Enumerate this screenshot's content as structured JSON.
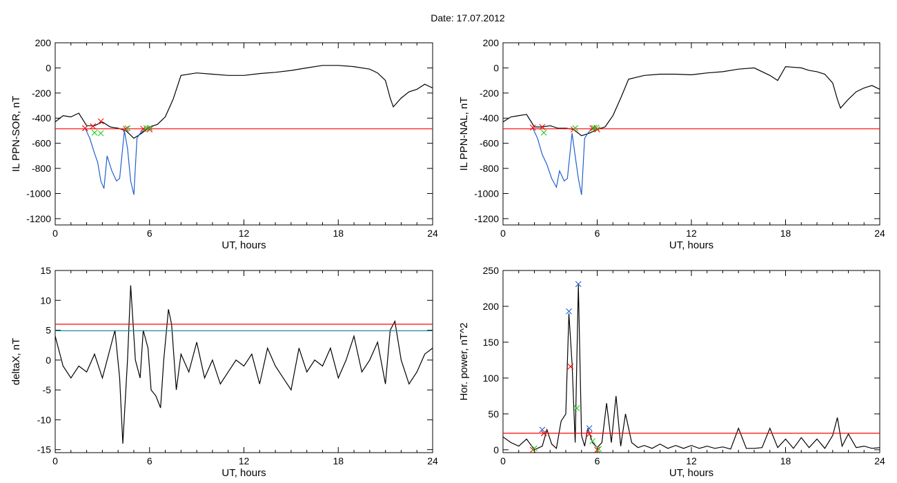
{
  "figure": {
    "title": "Date:  17.07.2012"
  },
  "colors": {
    "black": "#000000",
    "red": "#ff0000",
    "blue": "#1f5fd0",
    "teal": "#1c8a99",
    "green": "#22cc22"
  },
  "chart_data": [
    {
      "type": "line",
      "xlabel": "UT, hours",
      "ylabel": "IL PPN-SOR, nT",
      "xlim": [
        0,
        24
      ],
      "ylim": [
        -1250,
        200
      ],
      "xticks": [
        0,
        6,
        12,
        18,
        24
      ],
      "yticks": [
        200,
        0,
        -200,
        -400,
        -600,
        -800,
        -1000,
        -1200
      ],
      "grid": false,
      "series": [
        {
          "color": "#000000",
          "x": [
            0,
            0.5,
            1,
            1.5,
            2,
            2.5,
            3,
            3.5,
            4,
            4.5,
            5,
            5.5,
            6,
            6.5,
            7,
            7.5,
            8,
            9,
            10,
            11,
            12,
            13,
            14,
            15,
            16,
            17,
            18,
            19,
            20,
            20.5,
            21,
            21.3,
            21.5,
            22,
            22.5,
            23,
            23.5,
            24
          ],
          "y": [
            -430,
            -380,
            -390,
            -360,
            -460,
            -460,
            -430,
            -470,
            -480,
            -500,
            -560,
            -520,
            -470,
            -450,
            -390,
            -250,
            -60,
            -40,
            -50,
            -60,
            -60,
            -45,
            -35,
            -20,
            0,
            20,
            20,
            10,
            -10,
            -40,
            -100,
            -240,
            -310,
            -240,
            -190,
            -170,
            -130,
            -160
          ]
        },
        {
          "color": "#1f5fd0",
          "x": [
            1.9,
            2.2,
            2.5,
            2.7,
            2.9,
            3.1,
            3.3,
            3.6,
            3.9,
            4.1,
            4.4,
            4.6,
            4.8,
            5.0,
            5.2,
            5.4,
            5.6,
            5.9
          ],
          "y": [
            -480,
            -560,
            -680,
            -750,
            -900,
            -960,
            -700,
            -820,
            -900,
            -880,
            -500,
            -640,
            -900,
            -1010,
            -560,
            -520,
            -500,
            -480
          ]
        },
        {
          "color": "#ff0000",
          "x": [
            0,
            24
          ],
          "y": [
            -485,
            -485
          ]
        }
      ],
      "markers": [
        {
          "color": "#ff0000",
          "x": [
            1.9,
            2.4,
            2.9,
            4.5,
            5.6,
            6.0
          ],
          "y": [
            -480,
            -465,
            -425,
            -485,
            -485,
            -490
          ]
        },
        {
          "color": "#22cc22",
          "x": [
            2.5,
            2.9,
            4.6,
            5.8,
            6.0
          ],
          "y": [
            -515,
            -520,
            -480,
            -480,
            -478
          ]
        }
      ]
    },
    {
      "type": "line",
      "xlabel": "UT, hours",
      "ylabel": "IL PPN-NAL, nT",
      "xlim": [
        0,
        24
      ],
      "ylim": [
        -1250,
        200
      ],
      "xticks": [
        0,
        6,
        12,
        18,
        24
      ],
      "yticks": [
        200,
        0,
        -200,
        -400,
        -600,
        -800,
        -1000,
        -1200
      ],
      "grid": false,
      "series": [
        {
          "color": "#000000",
          "x": [
            0,
            0.5,
            1,
            1.5,
            2,
            2.5,
            3,
            3.5,
            4,
            4.5,
            5,
            5.5,
            6,
            6.5,
            7,
            7.5,
            8,
            9,
            10,
            11,
            12,
            13,
            14,
            15,
            16,
            17,
            17.5,
            18,
            19,
            19.5,
            20,
            20.5,
            21,
            21.3,
            21.5,
            22,
            22.5,
            23,
            23.5,
            24
          ],
          "y": [
            -430,
            -390,
            -380,
            -370,
            -470,
            -470,
            -460,
            -480,
            -480,
            -490,
            -540,
            -520,
            -490,
            -470,
            -380,
            -240,
            -90,
            -60,
            -50,
            -50,
            -55,
            -40,
            -30,
            -10,
            0,
            -60,
            -100,
            10,
            0,
            -20,
            -30,
            -50,
            -120,
            -250,
            -320,
            -250,
            -190,
            -160,
            -140,
            -170
          ]
        },
        {
          "color": "#1f5fd0",
          "x": [
            1.9,
            2.2,
            2.5,
            2.8,
            3.1,
            3.4,
            3.6,
            3.9,
            4.1,
            4.4,
            4.6,
            4.8,
            5.0,
            5.2,
            5.4,
            5.6,
            5.9
          ],
          "y": [
            -480,
            -560,
            -690,
            -770,
            -880,
            -950,
            -820,
            -900,
            -880,
            -520,
            -700,
            -880,
            -1010,
            -560,
            -520,
            -490,
            -480
          ]
        },
        {
          "color": "#ff0000",
          "x": [
            0,
            24
          ],
          "y": [
            -485,
            -485
          ]
        }
      ],
      "markers": [
        {
          "color": "#ff0000",
          "x": [
            1.9,
            2.5,
            4.5,
            5.7,
            6.0
          ],
          "y": [
            -475,
            -470,
            -490,
            -480,
            -490
          ]
        },
        {
          "color": "#22cc22",
          "x": [
            2.6,
            4.6,
            5.8,
            5.95
          ],
          "y": [
            -515,
            -480,
            -478,
            -475
          ]
        }
      ]
    },
    {
      "type": "line",
      "xlabel": "UT, hours",
      "ylabel": "deltaX, nT",
      "xlim": [
        0,
        24
      ],
      "ylim": [
        -15.5,
        15
      ],
      "xticks": [
        0,
        6,
        12,
        18,
        24
      ],
      "yticks": [
        15,
        10,
        5,
        0,
        -5,
        -10,
        -15
      ],
      "grid": false,
      "series": [
        {
          "color": "#000000",
          "x": [
            0,
            0.5,
            1,
            1.5,
            2,
            2.5,
            3,
            3.5,
            3.8,
            4.1,
            4.3,
            4.6,
            4.8,
            5.1,
            5.4,
            5.6,
            5.9,
            6.1,
            6.4,
            6.7,
            6.9,
            7.2,
            7.4,
            7.7,
            8,
            8.5,
            9,
            9.5,
            10,
            10.5,
            11,
            11.5,
            12,
            12.5,
            13,
            13.5,
            14,
            14.5,
            15,
            15.5,
            16,
            16.5,
            17,
            17.5,
            18,
            18.5,
            19,
            19.5,
            20,
            20.5,
            21,
            21.3,
            21.6,
            22,
            22.5,
            23,
            23.5,
            24
          ],
          "y": [
            4,
            -1,
            -3,
            -1,
            -2,
            1,
            -3,
            2,
            5,
            -3,
            -14,
            0,
            12.5,
            0,
            -3,
            5,
            2,
            -5,
            -6,
            -8,
            0,
            8.5,
            6,
            -5,
            1,
            -2,
            3,
            -3,
            0,
            -4,
            -2,
            0,
            -1,
            1,
            -4,
            2,
            -1,
            -3,
            -5,
            2,
            -2,
            0,
            -1,
            2,
            -3,
            0,
            4,
            -2,
            0,
            3,
            -4,
            5,
            6.5,
            0,
            -4,
            -2,
            1,
            2
          ]
        },
        {
          "color": "#ff0000",
          "x": [
            0,
            24
          ],
          "y": [
            6,
            6
          ]
        },
        {
          "color": "#1c8a99",
          "x": [
            0,
            24
          ],
          "y": [
            4.9,
            4.9
          ]
        }
      ]
    },
    {
      "type": "line",
      "xlabel": "UT, hours",
      "ylabel": "Hor. power, nT^2",
      "xlim": [
        0,
        24
      ],
      "ylim": [
        -4,
        250
      ],
      "xticks": [
        0,
        6,
        12,
        18,
        24
      ],
      "yticks": [
        250,
        200,
        150,
        100,
        50,
        0
      ],
      "grid": false,
      "series": [
        {
          "color": "#000000",
          "x": [
            0,
            0.5,
            1,
            1.5,
            2,
            2.5,
            2.8,
            3.1,
            3.4,
            3.7,
            4.0,
            4.2,
            4.4,
            4.6,
            4.8,
            5.0,
            5.2,
            5.4,
            5.7,
            6.0,
            6.3,
            6.6,
            6.9,
            7.2,
            7.5,
            7.8,
            8.2,
            8.6,
            9,
            9.5,
            10,
            10.5,
            11,
            11.5,
            12,
            12.5,
            13,
            13.5,
            14,
            14.5,
            15,
            15.5,
            16,
            16.5,
            17,
            17.5,
            18,
            18.5,
            19,
            19.5,
            20,
            20.5,
            21,
            21.3,
            21.6,
            22,
            22.5,
            23,
            23.5,
            24
          ],
          "y": [
            18,
            10,
            5,
            15,
            0,
            5,
            28,
            8,
            2,
            40,
            50,
            190,
            120,
            10,
            230,
            20,
            5,
            30,
            10,
            3,
            10,
            65,
            10,
            75,
            5,
            50,
            10,
            3,
            6,
            2,
            8,
            2,
            6,
            2,
            6,
            2,
            5,
            2,
            4,
            1,
            30,
            2,
            2,
            3,
            30,
            3,
            15,
            2,
            17,
            3,
            15,
            2,
            20,
            45,
            5,
            22,
            3,
            5,
            2,
            3
          ]
        },
        {
          "color": "#ff0000",
          "x": [
            0,
            24
          ],
          "y": [
            23,
            23
          ]
        }
      ],
      "markers": [
        {
          "color": "#ff0000",
          "x": [
            1.9,
            2.6,
            4.3,
            5.5,
            6.0
          ],
          "y": [
            0,
            23,
            116,
            22,
            0
          ]
        },
        {
          "color": "#1f5fd0",
          "x": [
            2.5,
            4.2,
            4.8,
            5.5
          ],
          "y": [
            28,
            193,
            231,
            30
          ]
        },
        {
          "color": "#22cc22",
          "x": [
            2.0,
            4.7,
            5.7,
            6.1
          ],
          "y": [
            2,
            58,
            12,
            1
          ]
        }
      ]
    }
  ]
}
